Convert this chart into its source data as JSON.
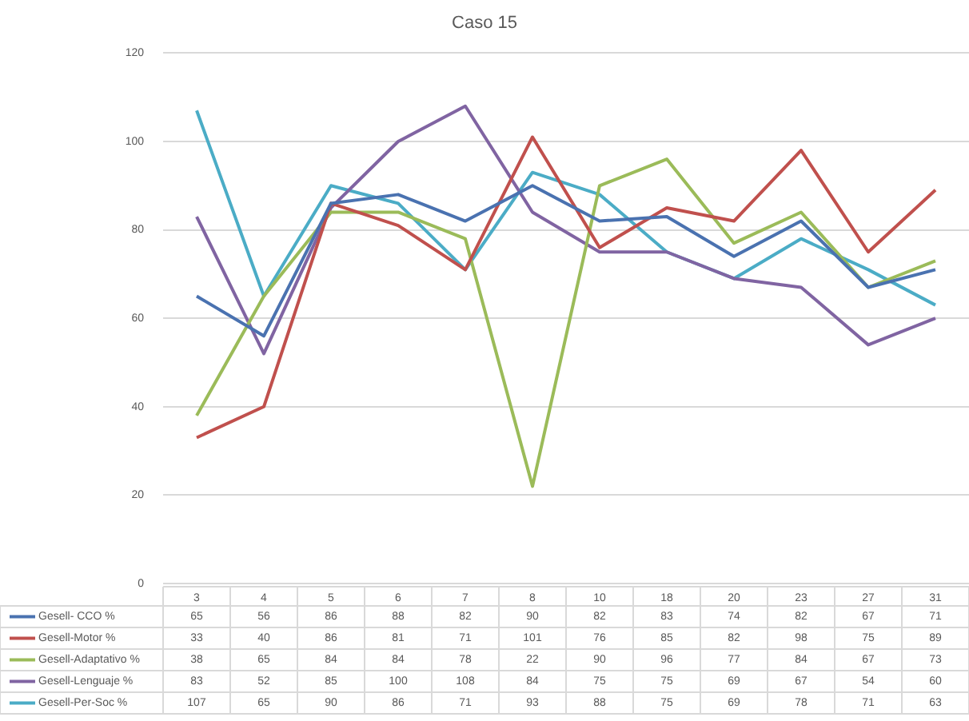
{
  "chart_data": {
    "type": "line",
    "title": "Caso 15",
    "categories": [
      "3",
      "4",
      "5",
      "6",
      "7",
      "8",
      "10",
      "18",
      "20",
      "23",
      "27",
      "31"
    ],
    "series": [
      {
        "name": "Gesell- CCO %",
        "color": "#4a72b0",
        "values": [
          65,
          56,
          86,
          88,
          82,
          90,
          82,
          83,
          74,
          82,
          67,
          71
        ]
      },
      {
        "name": "Gesell-Motor %",
        "color": "#c0504d",
        "values": [
          33,
          40,
          86,
          81,
          71,
          101,
          76,
          85,
          82,
          98,
          75,
          89
        ]
      },
      {
        "name": "Gesell-Adaptativo %",
        "color": "#9bbb59",
        "values": [
          38,
          65,
          84,
          84,
          78,
          22,
          90,
          96,
          77,
          84,
          67,
          73
        ]
      },
      {
        "name": "Gesell-Lenguaje %",
        "color": "#8064a2",
        "values": [
          83,
          52,
          85,
          100,
          108,
          84,
          75,
          75,
          69,
          67,
          54,
          60
        ]
      },
      {
        "name": "Gesell-Per-Soc %",
        "color": "#4bacc6",
        "values": [
          107,
          65,
          90,
          86,
          71,
          93,
          88,
          75,
          69,
          78,
          71,
          63
        ]
      }
    ],
    "ylim": [
      0,
      120
    ],
    "yticks": [
      0,
      20,
      40,
      60,
      80,
      100,
      120
    ],
    "grid": "y",
    "legend": "bottom",
    "data_labels": true,
    "marker": "none",
    "line_style": "solid"
  }
}
